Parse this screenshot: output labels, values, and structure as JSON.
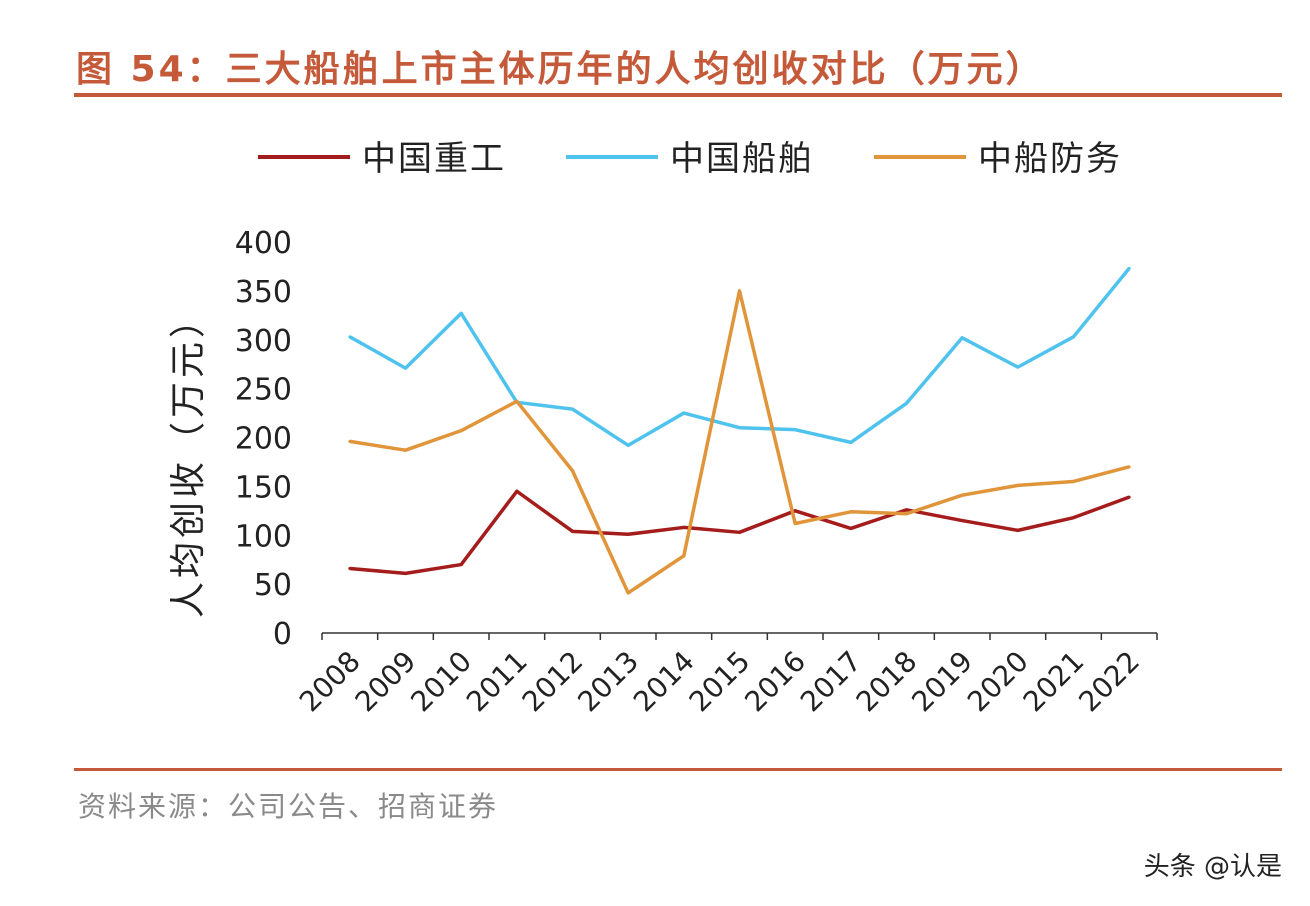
{
  "title": "图 54：三大船舶上市主体历年的人均创收对比（万元）",
  "source": "资料来源：公司公告、招商证券",
  "watermark": "头条 @认是",
  "chart_data": {
    "type": "line",
    "title": "图 54：三大船舶上市主体历年的人均创收对比（万元）",
    "xlabel": "",
    "ylabel": "人均创收（万元）",
    "ylim": [
      0,
      400
    ],
    "yticks": [
      0,
      50,
      100,
      150,
      200,
      250,
      300,
      350,
      400
    ],
    "grid": false,
    "legend": "top",
    "categories": [
      "2008",
      "2009",
      "2010",
      "2011",
      "2012",
      "2013",
      "2014",
      "2015",
      "2016",
      "2017",
      "2018",
      "2019",
      "2020",
      "2021",
      "2022"
    ],
    "series": [
      {
        "name": "中国重工",
        "color": "#a51c1c",
        "values": [
          66,
          61,
          70,
          145,
          104,
          101,
          108,
          103,
          125,
          107,
          126,
          115,
          105,
          118,
          139
        ]
      },
      {
        "name": "中国船舶",
        "color": "#4fc3ee",
        "values": [
          303,
          271,
          327,
          236,
          229,
          192,
          225,
          210,
          208,
          195,
          235,
          302,
          272,
          303,
          373
        ]
      },
      {
        "name": "中船防务",
        "color": "#e0953a",
        "values": [
          196,
          187,
          207,
          237,
          166,
          41,
          79,
          350,
          112,
          124,
          122,
          141,
          151,
          155,
          170
        ]
      }
    ]
  }
}
